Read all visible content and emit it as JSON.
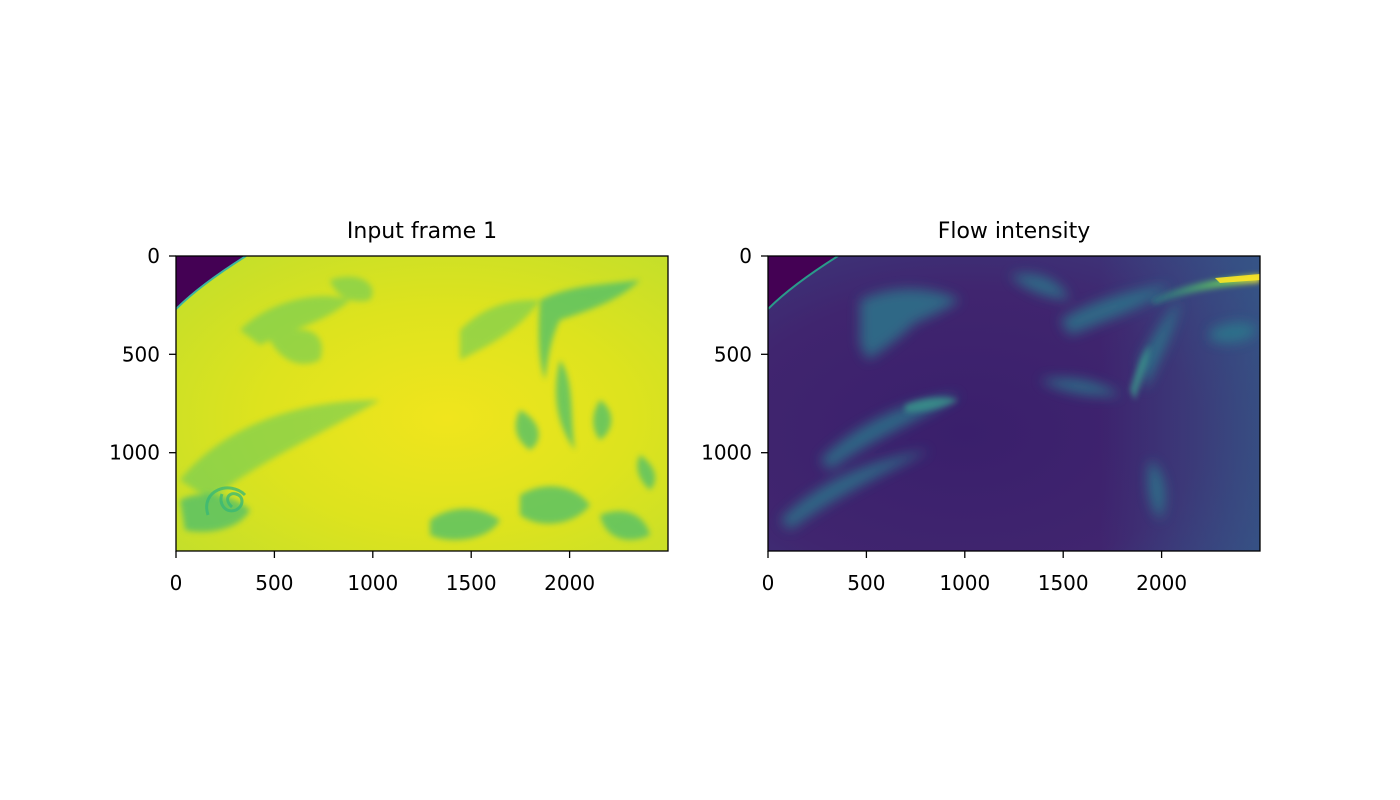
{
  "chart_data": [
    {
      "type": "heatmap",
      "title": "Input frame 1",
      "xlabel": "",
      "ylabel": "",
      "xlim": [
        0,
        2500
      ],
      "ylim": [
        1500,
        0
      ],
      "x_ticks": [
        0,
        500,
        1000,
        1500,
        2000
      ],
      "y_ticks": [
        0,
        500,
        1000
      ],
      "colormap": "viridis",
      "grid": false
    },
    {
      "type": "heatmap",
      "title": "Flow intensity",
      "xlabel": "",
      "ylabel": "",
      "xlim": [
        0,
        2500
      ],
      "ylim": [
        1500,
        0
      ],
      "x_ticks": [
        0,
        500,
        1000,
        1500,
        2000
      ],
      "y_ticks": [
        0,
        500,
        1000
      ],
      "colormap": "viridis",
      "grid": false
    }
  ],
  "colors": {
    "viridis_dark": "#440154",
    "viridis_blue": "#3b528b",
    "viridis_teal": "#21918c",
    "viridis_green": "#5ec962",
    "viridis_yellow": "#fde725"
  }
}
